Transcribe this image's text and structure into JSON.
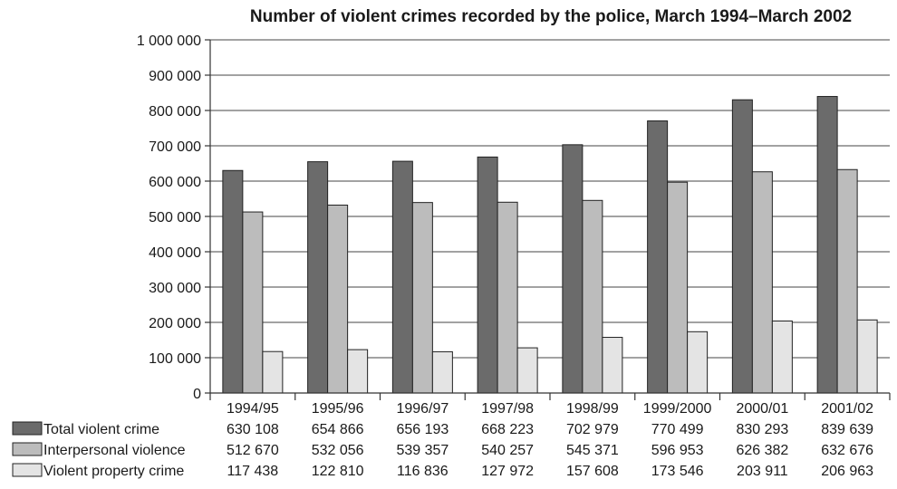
{
  "chart_data": {
    "type": "bar",
    "title": "Number of violent crimes recorded by the police, March 1994–March 2002",
    "categories": [
      "1994/95",
      "1995/96",
      "1996/97",
      "1997/98",
      "1998/99",
      "1999/2000",
      "2000/01",
      "2001/02"
    ],
    "series": [
      {
        "name": "Total violent crime",
        "color": "#6b6b6b",
        "values": [
          630108,
          654866,
          656193,
          668223,
          702979,
          770499,
          830293,
          839639
        ],
        "value_labels": [
          "630 108",
          "654 866",
          "656 193",
          "668 223",
          "702 979",
          "770 499",
          "830 293",
          "839 639"
        ]
      },
      {
        "name": "Interpersonal violence",
        "color": "#bcbcbc",
        "values": [
          512670,
          532056,
          539357,
          540257,
          545371,
          596953,
          626382,
          632676
        ],
        "value_labels": [
          "512 670",
          "532 056",
          "539 357",
          "540 257",
          "545 371",
          "596 953",
          "626 382",
          "632 676"
        ]
      },
      {
        "name": "Violent property crime",
        "color": "#e4e4e4",
        "values": [
          117438,
          122810,
          116836,
          127972,
          157608,
          173546,
          203911,
          206963
        ],
        "value_labels": [
          "117 438",
          "122 810",
          "116 836",
          "127 972",
          "157 608",
          "173 546",
          "203 911",
          "206 963"
        ]
      }
    ],
    "ylim": [
      0,
      1000000
    ],
    "yticks": [
      0,
      100000,
      200000,
      300000,
      400000,
      500000,
      600000,
      700000,
      800000,
      900000,
      1000000
    ],
    "ytick_labels": [
      "0",
      "100 000",
      "200 000",
      "300 000",
      "400 000",
      "500 000",
      "600 000",
      "700 000",
      "800 000",
      "900 000",
      "1 000 000"
    ],
    "grid": true,
    "legend": "data-table-below"
  }
}
